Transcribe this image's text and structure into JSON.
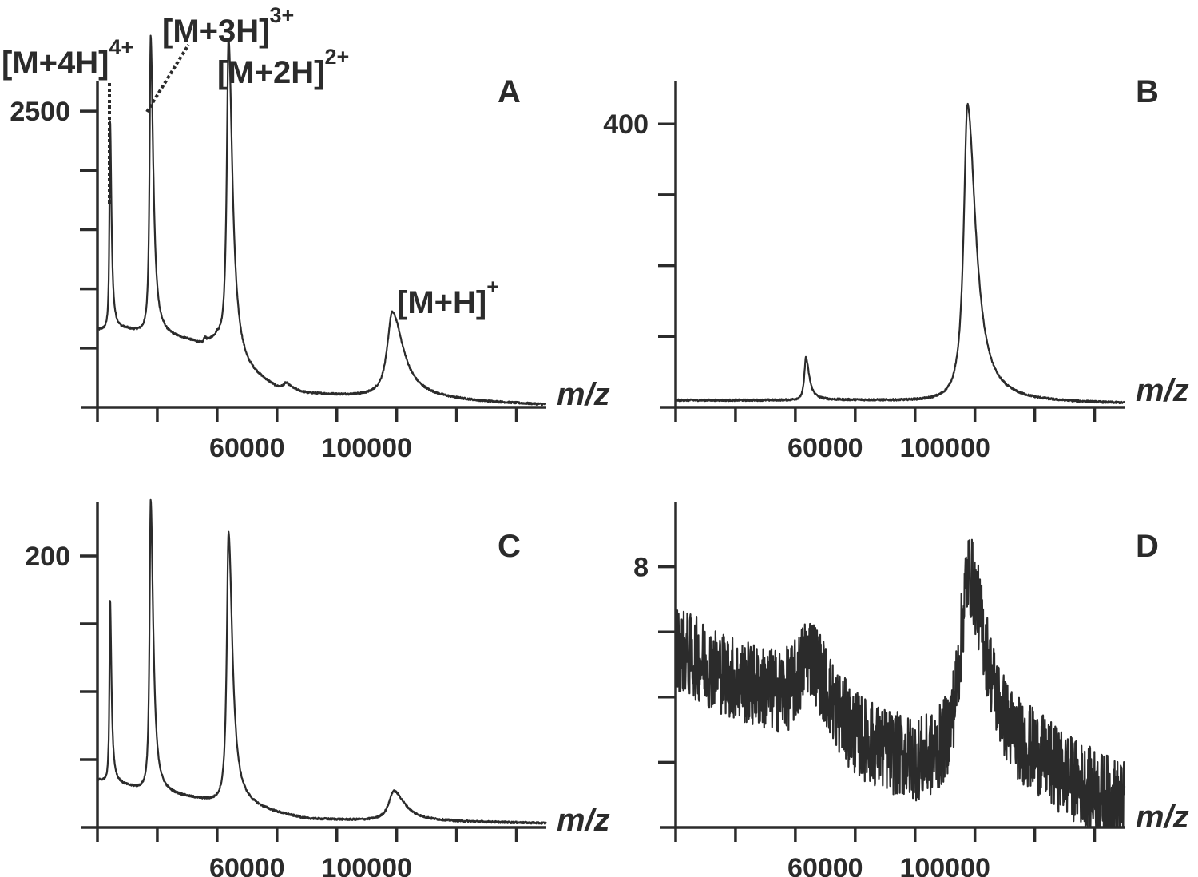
{
  "chart_data": [
    {
      "type": "line",
      "panel": "A",
      "xlabel": "m/z",
      "x_range": [
        10000,
        160000
      ],
      "ylim": [
        0,
        2750
      ],
      "x_ticks": [
        10000,
        30000,
        50000,
        70000,
        90000,
        110000,
        130000,
        150000
      ],
      "x_tick_labels": [
        {
          "value": 60000,
          "label": "60000"
        },
        {
          "value": 100000,
          "label": "100000"
        }
      ],
      "y_ticks": [
        500,
        1000,
        1500,
        2000,
        2500
      ],
      "y_tick_labels": [
        {
          "value": 2500,
          "label": "2500"
        }
      ],
      "baseline": [
        [
          10000,
          650
        ],
        [
          20000,
          650
        ],
        [
          30000,
          600
        ],
        [
          40000,
          560
        ],
        [
          45000,
          520
        ],
        [
          50000,
          560
        ],
        [
          60000,
          280
        ],
        [
          70000,
          150
        ],
        [
          80000,
          110
        ],
        [
          100000,
          90
        ],
        [
          120000,
          70
        ],
        [
          140000,
          40
        ],
        [
          160000,
          20
        ]
      ],
      "peaks": [
        {
          "center": 14200,
          "height": 1780,
          "width": 250
        },
        {
          "center": 27800,
          "height": 2520,
          "width": 450
        },
        {
          "center": 53800,
          "height": 2660,
          "width": 700
        },
        {
          "center": 73000,
          "height": 50,
          "width": 900
        },
        {
          "center": 108500,
          "height": 720,
          "width": 2000
        },
        {
          "center": 45800,
          "height": 40,
          "width": 300
        }
      ],
      "annotations": [
        {
          "base": "[M+4H]",
          "sup": "4+",
          "x": 14200
        },
        {
          "base": "[M+3H]",
          "sup": "3+",
          "x": 27800
        },
        {
          "base": "[M+2H]",
          "sup": "2+",
          "x": 53800
        },
        {
          "base": "[M+H]",
          "sup": "+",
          "x": 108500
        }
      ]
    },
    {
      "type": "line",
      "panel": "B",
      "xlabel": "m/z",
      "x_range": [
        10000,
        160000
      ],
      "ylim": [
        0,
        460
      ],
      "x_ticks": [
        10000,
        30000,
        50000,
        70000,
        90000,
        110000,
        130000,
        150000
      ],
      "x_tick_labels": [
        {
          "value": 60000,
          "label": "60000"
        },
        {
          "value": 100000,
          "label": "100000"
        }
      ],
      "y_ticks": [
        100,
        200,
        300,
        400
      ],
      "y_tick_labels": [
        {
          "value": 400,
          "label": "400"
        }
      ],
      "baseline": [
        [
          10000,
          10
        ],
        [
          50000,
          10
        ],
        [
          70000,
          10
        ],
        [
          100000,
          8
        ],
        [
          160000,
          5
        ]
      ],
      "peaks": [
        {
          "center": 53500,
          "height": 60,
          "width": 600
        },
        {
          "center": 107500,
          "height": 420,
          "width": 1500
        }
      ],
      "annotations": []
    },
    {
      "type": "line",
      "panel": "C",
      "xlabel": "m/z",
      "x_range": [
        10000,
        160000
      ],
      "ylim": [
        0,
        240
      ],
      "x_ticks": [
        10000,
        30000,
        50000,
        70000,
        90000,
        110000,
        130000,
        150000
      ],
      "x_tick_labels": [
        {
          "value": 60000,
          "label": "60000"
        },
        {
          "value": 100000,
          "label": "100000"
        }
      ],
      "y_ticks": [
        50,
        100,
        150,
        200
      ],
      "y_tick_labels": [
        {
          "value": 200,
          "label": "200"
        }
      ],
      "baseline": [
        [
          10000,
          35
        ],
        [
          20000,
          30
        ],
        [
          30000,
          25
        ],
        [
          45000,
          20
        ],
        [
          50000,
          18
        ],
        [
          60000,
          15
        ],
        [
          70000,
          10
        ],
        [
          80000,
          6
        ],
        [
          100000,
          5
        ],
        [
          160000,
          3
        ]
      ],
      "peaks": [
        {
          "center": 14200,
          "height": 135,
          "width": 250
        },
        {
          "center": 27800,
          "height": 215,
          "width": 450
        },
        {
          "center": 53800,
          "height": 200,
          "width": 700
        },
        {
          "center": 109000,
          "height": 22,
          "width": 2000
        }
      ],
      "annotations": []
    },
    {
      "type": "line",
      "panel": "D",
      "xlabel": "m/z",
      "x_range": [
        10000,
        160000
      ],
      "ylim": [
        0,
        10
      ],
      "x_ticks": [
        10000,
        30000,
        50000,
        70000,
        90000,
        110000,
        130000,
        150000
      ],
      "x_tick_labels": [
        {
          "value": 60000,
          "label": "60000"
        },
        {
          "value": 100000,
          "label": "100000"
        }
      ],
      "y_ticks": [
        2,
        4,
        6,
        8
      ],
      "y_tick_labels": [
        {
          "value": 8,
          "label": "8"
        }
      ],
      "baseline": [
        [
          10000,
          5.5
        ],
        [
          30000,
          4.5
        ],
        [
          50000,
          3.8
        ],
        [
          70000,
          2.5
        ],
        [
          90000,
          1.8
        ],
        [
          110000,
          1.5
        ],
        [
          130000,
          1.7
        ],
        [
          150000,
          0.9
        ],
        [
          160000,
          0.6
        ]
      ],
      "peaks": [
        {
          "center": 54500,
          "height": 1.8,
          "width": 3500
        },
        {
          "center": 107800,
          "height": 6.2,
          "width": 3500
        }
      ],
      "annotations": []
    }
  ]
}
